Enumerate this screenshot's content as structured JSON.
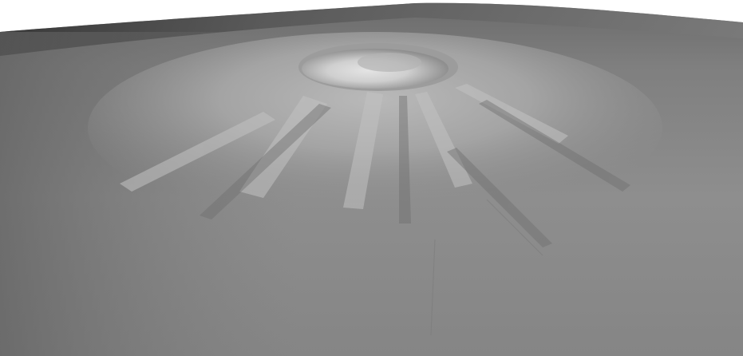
{
  "scene": {
    "subject": "shaded-relief-volcano-terrain",
    "colors": {
      "sky": "#ffffff",
      "terrain_light": "#d8d8d8",
      "terrain_mid": "#9a9a9a",
      "terrain_dark": "#5e5e5e",
      "horizon_dark": "#3a3a3a"
    }
  },
  "caption": {
    "text": ""
  }
}
